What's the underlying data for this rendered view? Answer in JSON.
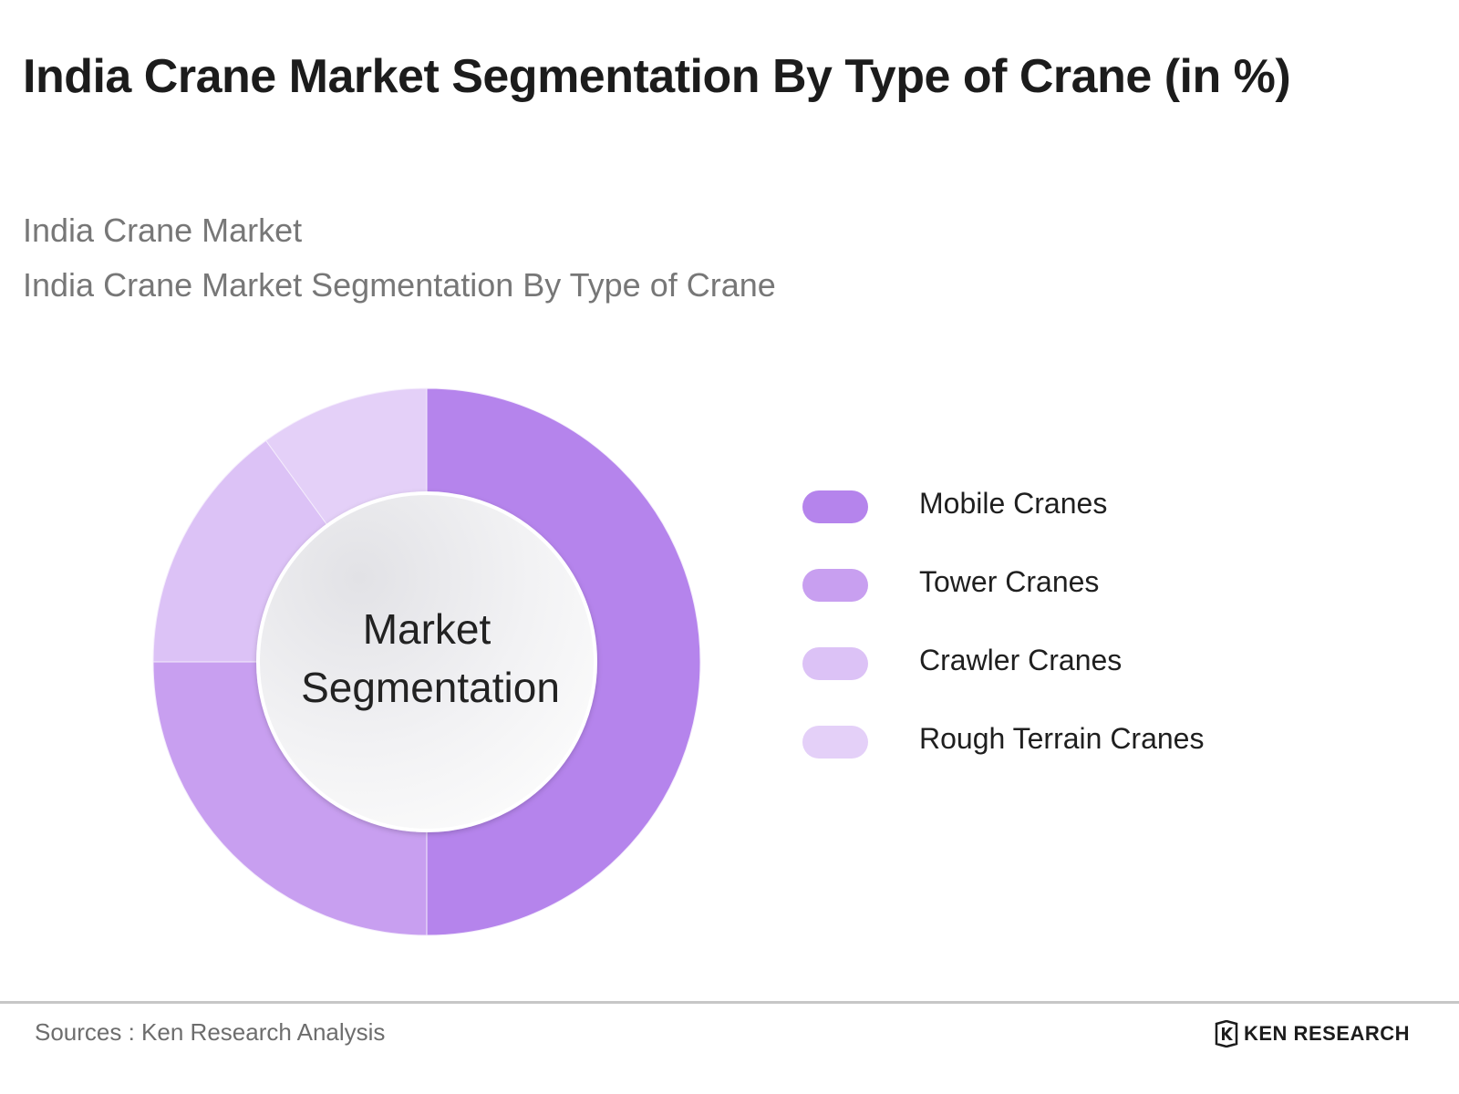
{
  "header": {
    "title": "India Crane Market Segmentation By Type of Crane (in %)",
    "subtitle_1": "India Crane Market",
    "subtitle_2": "India Crane Market Segmentation By Type of Crane"
  },
  "chart_data": {
    "type": "pie",
    "variant": "donut",
    "center_label_line1": "Market",
    "center_label_line2": "Segmentation",
    "categories": [
      "Mobile Cranes",
      "Tower Cranes",
      "Crawler Cranes",
      "Rough Terrain Cranes"
    ],
    "values": [
      50,
      25,
      15,
      10
    ],
    "colors": [
      "#b584ec",
      "#c89ff0",
      "#dcc2f6",
      "#e4d0f8"
    ],
    "legend_position": "right"
  },
  "footer": {
    "source": "Sources : Ken Research Analysis",
    "brand": "KEN RESEARCH"
  }
}
